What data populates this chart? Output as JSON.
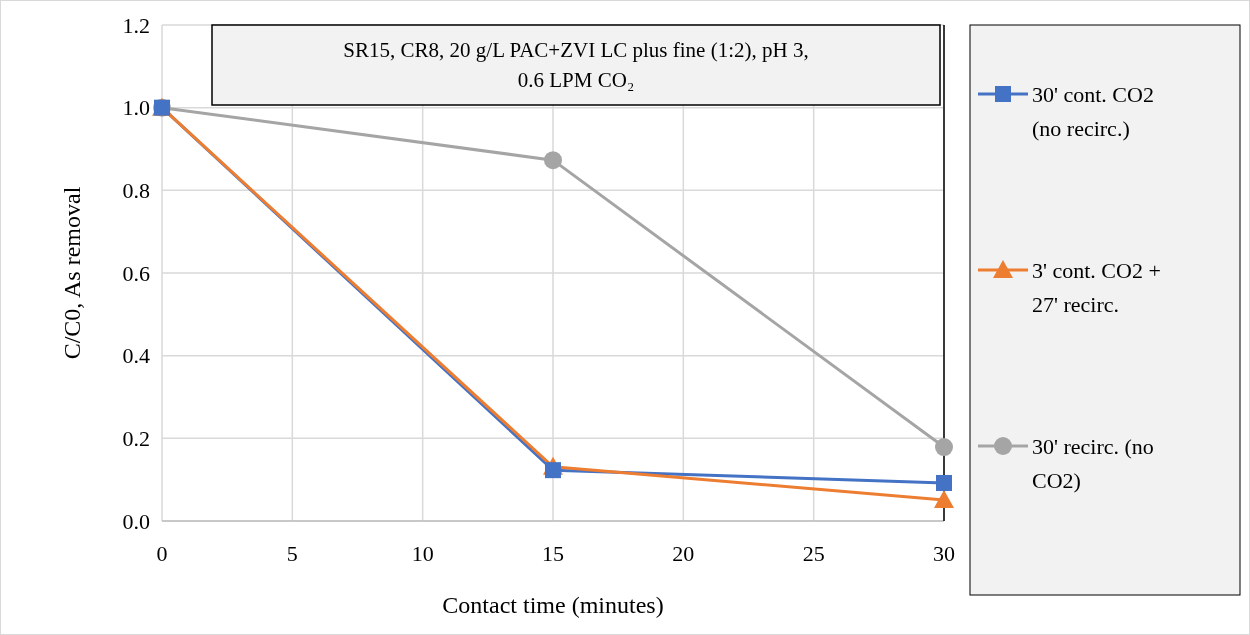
{
  "chart_data": {
    "type": "line",
    "title": "SR15, CR8, 20 g/L PAC+ZVI LC plus fine (1:2), pH 3, 0.6 LPM CO₂",
    "xlabel": "Contact time (minutes)",
    "ylabel": "C/C0, As removal",
    "x": [
      0,
      15,
      30
    ],
    "series": [
      {
        "name": "30' cont. CO2 (no recirc.)",
        "color": "#4472c4",
        "marker": "square",
        "values": [
          1.0,
          0.123,
          0.092
        ]
      },
      {
        "name": "3' cont. CO2 + 27' recirc.",
        "color": "#ed7d31",
        "marker": "triangle",
        "values": [
          1.0,
          0.131,
          0.051
        ]
      },
      {
        "name": "30' recirc. (no CO2)",
        "color": "#a5a5a5",
        "marker": "circle",
        "values": [
          1.0,
          0.873,
          0.179
        ]
      }
    ],
    "xlim": [
      0,
      30
    ],
    "xticks": [
      0,
      5,
      10,
      15,
      20,
      25,
      30
    ],
    "ylim": [
      0,
      1.2
    ],
    "yticks": [
      {
        "value": 0,
        "label": "0.0"
      },
      {
        "value": 0.2,
        "label": "0.2"
      },
      {
        "value": 0.4,
        "label": "0.4"
      },
      {
        "value": 0.6,
        "label": "0.6"
      },
      {
        "value": 0.8,
        "label": "0.8"
      },
      {
        "value": 1.0,
        "label": "1.0"
      },
      {
        "value": 1.2,
        "label": "1.2"
      }
    ],
    "grid": true,
    "legend": "right",
    "line_style": "solid"
  }
}
